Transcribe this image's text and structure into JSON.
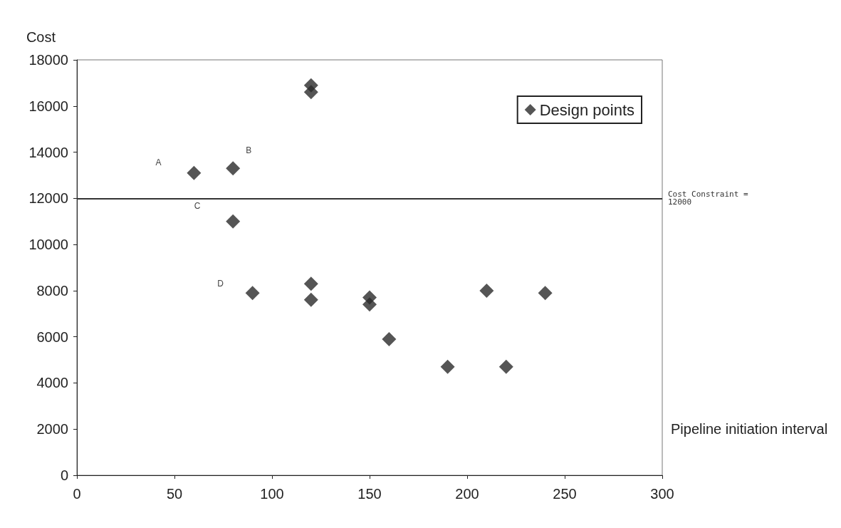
{
  "chart_data": {
    "type": "scatter",
    "xlabel": "Pipeline initiation interval",
    "ylabel": "Cost",
    "x": [
      60,
      80,
      80,
      90,
      120,
      120,
      120,
      120,
      150,
      150,
      160,
      190,
      210,
      220,
      240
    ],
    "series": [
      {
        "name": "Design points",
        "color": "#2b2b2b",
        "values": [
          13100,
          13300,
          11000,
          7900,
          16900,
          16600,
          8300,
          7600,
          7700,
          7400,
          5900,
          4700,
          8000,
          4700,
          7900
        ]
      }
    ],
    "xlim": [
      0,
      300
    ],
    "xticks": [
      0,
      50,
      100,
      150,
      200,
      250,
      300
    ],
    "ylim": [
      0,
      18000
    ],
    "yticks": [
      0,
      2000,
      4000,
      6000,
      8000,
      10000,
      12000,
      14000,
      16000,
      18000
    ],
    "ref_lines": [
      {
        "axis": "y",
        "value": 12000,
        "label": "Cost Constraint = 12000",
        "color": "#333333"
      }
    ],
    "annotations": [
      "A",
      "B",
      "C",
      "D"
    ],
    "marker": "diamond",
    "grid": false,
    "legend": "top right"
  }
}
